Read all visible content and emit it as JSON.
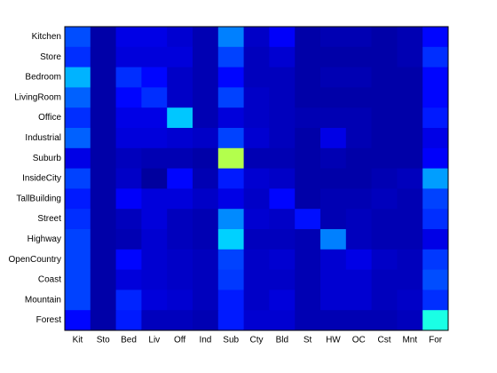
{
  "chart_data": {
    "type": "heatmap",
    "rows": [
      "Kitchen",
      "Store",
      "Bedroom",
      "LivingRoom",
      "Office",
      "Industrial",
      "Suburb",
      "InsideCity",
      "TallBuilding",
      "Street",
      "Highway",
      "OpenCountry",
      "Coast",
      "Mountain",
      "Forest"
    ],
    "columns": [
      "Kit",
      "Sto",
      "Bed",
      "Liv",
      "Off",
      "Ind",
      "Sub",
      "Cty",
      "Bld",
      "St",
      "HW",
      "OC",
      "Cst",
      "Mnt",
      "For"
    ],
    "colormap": "jet",
    "clim": [
      0,
      1
    ],
    "values": [
      [
        0.2,
        0.04,
        0.1,
        0.1,
        0.08,
        0.05,
        0.25,
        0.07,
        0.12,
        0.04,
        0.05,
        0.05,
        0.04,
        0.05,
        0.13
      ],
      [
        0.17,
        0.04,
        0.09,
        0.09,
        0.09,
        0.05,
        0.19,
        0.06,
        0.08,
        0.04,
        0.04,
        0.04,
        0.04,
        0.05,
        0.17
      ],
      [
        0.3,
        0.04,
        0.17,
        0.13,
        0.07,
        0.05,
        0.13,
        0.06,
        0.06,
        0.04,
        0.05,
        0.05,
        0.04,
        0.04,
        0.13
      ],
      [
        0.22,
        0.04,
        0.13,
        0.17,
        0.07,
        0.05,
        0.19,
        0.07,
        0.06,
        0.04,
        0.04,
        0.04,
        0.04,
        0.04,
        0.13
      ],
      [
        0.17,
        0.04,
        0.1,
        0.1,
        0.32,
        0.05,
        0.09,
        0.07,
        0.06,
        0.05,
        0.05,
        0.05,
        0.04,
        0.04,
        0.15
      ],
      [
        0.22,
        0.04,
        0.09,
        0.09,
        0.08,
        0.07,
        0.19,
        0.08,
        0.06,
        0.04,
        0.1,
        0.05,
        0.04,
        0.04,
        0.1
      ],
      [
        0.1,
        0.04,
        0.06,
        0.05,
        0.05,
        0.04,
        0.55,
        0.05,
        0.05,
        0.04,
        0.05,
        0.04,
        0.04,
        0.04,
        0.12
      ],
      [
        0.19,
        0.04,
        0.07,
        0.03,
        0.13,
        0.05,
        0.15,
        0.08,
        0.07,
        0.04,
        0.04,
        0.04,
        0.05,
        0.06,
        0.28
      ],
      [
        0.15,
        0.04,
        0.12,
        0.09,
        0.09,
        0.07,
        0.1,
        0.07,
        0.13,
        0.04,
        0.05,
        0.05,
        0.06,
        0.05,
        0.19
      ],
      [
        0.17,
        0.04,
        0.06,
        0.09,
        0.06,
        0.05,
        0.26,
        0.08,
        0.07,
        0.14,
        0.05,
        0.06,
        0.05,
        0.05,
        0.17
      ],
      [
        0.19,
        0.04,
        0.05,
        0.08,
        0.06,
        0.05,
        0.33,
        0.06,
        0.06,
        0.05,
        0.25,
        0.06,
        0.05,
        0.05,
        0.1
      ],
      [
        0.19,
        0.04,
        0.13,
        0.08,
        0.07,
        0.06,
        0.19,
        0.07,
        0.08,
        0.05,
        0.08,
        0.1,
        0.07,
        0.06,
        0.18
      ],
      [
        0.19,
        0.04,
        0.09,
        0.08,
        0.07,
        0.06,
        0.18,
        0.07,
        0.07,
        0.05,
        0.08,
        0.08,
        0.06,
        0.06,
        0.2
      ],
      [
        0.19,
        0.04,
        0.16,
        0.09,
        0.08,
        0.06,
        0.15,
        0.07,
        0.09,
        0.05,
        0.08,
        0.08,
        0.06,
        0.07,
        0.17
      ],
      [
        0.13,
        0.04,
        0.15,
        0.06,
        0.06,
        0.05,
        0.15,
        0.08,
        0.08,
        0.05,
        0.05,
        0.05,
        0.05,
        0.06,
        0.4
      ]
    ]
  }
}
